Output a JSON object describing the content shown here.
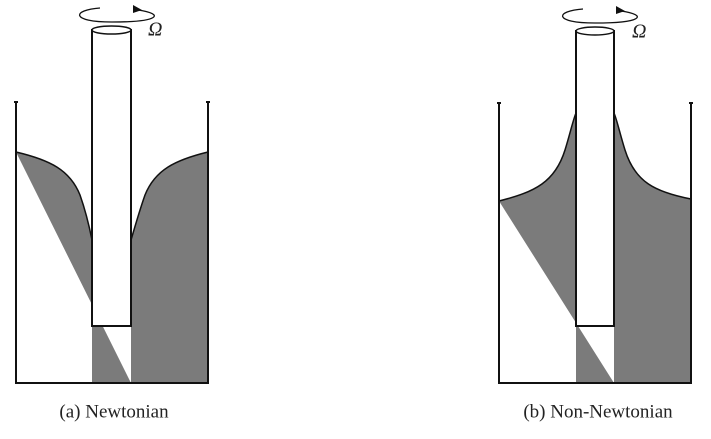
{
  "panels": [
    {
      "symbol": "Ω",
      "caption": "(a) Newtonian"
    },
    {
      "symbol": "Ω",
      "caption": "(b) Non-Newtonian"
    }
  ]
}
